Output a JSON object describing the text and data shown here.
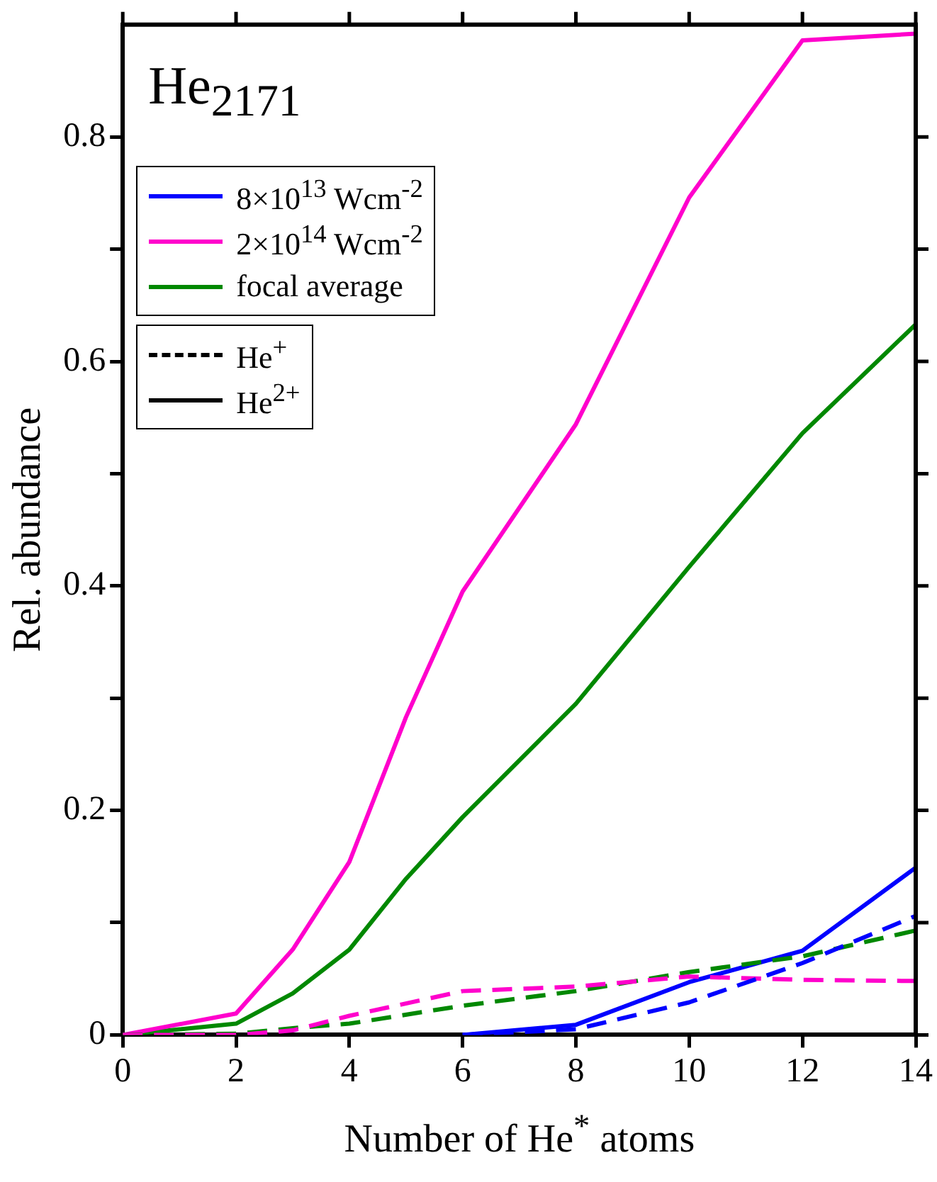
{
  "chart_data": {
    "type": "line",
    "title": "He$_{2171}$",
    "xlabel": "Number of He$^{*}$ atoms",
    "ylabel": "Rel. abundance",
    "xlim": [
      0,
      14
    ],
    "xticks": [
      0,
      2,
      4,
      6,
      8,
      10,
      12,
      14
    ],
    "ylim": [
      0,
      0.9
    ],
    "yticks": [
      0,
      {
        "value": 0.1,
        "label": null
      },
      0.2,
      {
        "value": 0.3,
        "label": null
      },
      0.4,
      {
        "value": 0.5,
        "label": null
      },
      0.6,
      {
        "value": 0.7,
        "label": null
      },
      0.8
    ],
    "grid": false,
    "legend": "top left",
    "marker": "none",
    "annotations": [
      "He$^{+}$",
      "He$^{2+}$"
    ],
    "series": [
      {
        "color": "#0000ff",
        "line_style": "dashed",
        "x": [
          6,
          8,
          10,
          12,
          14
        ],
        "values": [
          0,
          0.005,
          0.029,
          0.064,
          0.106
        ]
      },
      {
        "color": "#ff00cc",
        "line_style": "dashed",
        "x": [
          0,
          2,
          3,
          4,
          6,
          8,
          10,
          12,
          14
        ],
        "values": [
          0,
          0,
          0.004,
          0.017,
          0.039,
          0.043,
          0.052,
          0.049,
          0.048
        ]
      },
      {
        "color": "#008800",
        "line_style": "dashed",
        "x": [
          0,
          2,
          3,
          4,
          6,
          8,
          10,
          12,
          14
        ],
        "values": [
          0,
          0.001,
          0.006,
          0.01,
          0.026,
          0.039,
          0.056,
          0.07,
          0.093
        ]
      },
      {
        "name": "8×10$^{13}$ Wcm$^{-2}$",
        "color": "#0000ff",
        "line_style": "solid",
        "x": [
          6,
          8,
          10,
          12,
          14
        ],
        "values": [
          0,
          0.009,
          0.047,
          0.075,
          0.149
        ]
      },
      {
        "name": "2×10$^{14}$ Wcm$^{-2}$",
        "color": "#ff00cc",
        "line_style": "solid",
        "x": [
          0,
          2,
          3,
          4,
          5,
          6,
          8,
          10,
          12,
          14
        ],
        "values": [
          0,
          0.019,
          0.076,
          0.154,
          0.283,
          0.395,
          0.544,
          0.746,
          0.886,
          0.892
        ]
      },
      {
        "name": "focal average",
        "color": "#008800",
        "line_style": "solid",
        "x": [
          0,
          2,
          3,
          4,
          5,
          6,
          8,
          10,
          12,
          14
        ],
        "values": [
          0,
          0.01,
          0.037,
          0.076,
          0.139,
          0.194,
          0.295,
          0.417,
          0.536,
          0.633
        ]
      }
    ]
  }
}
